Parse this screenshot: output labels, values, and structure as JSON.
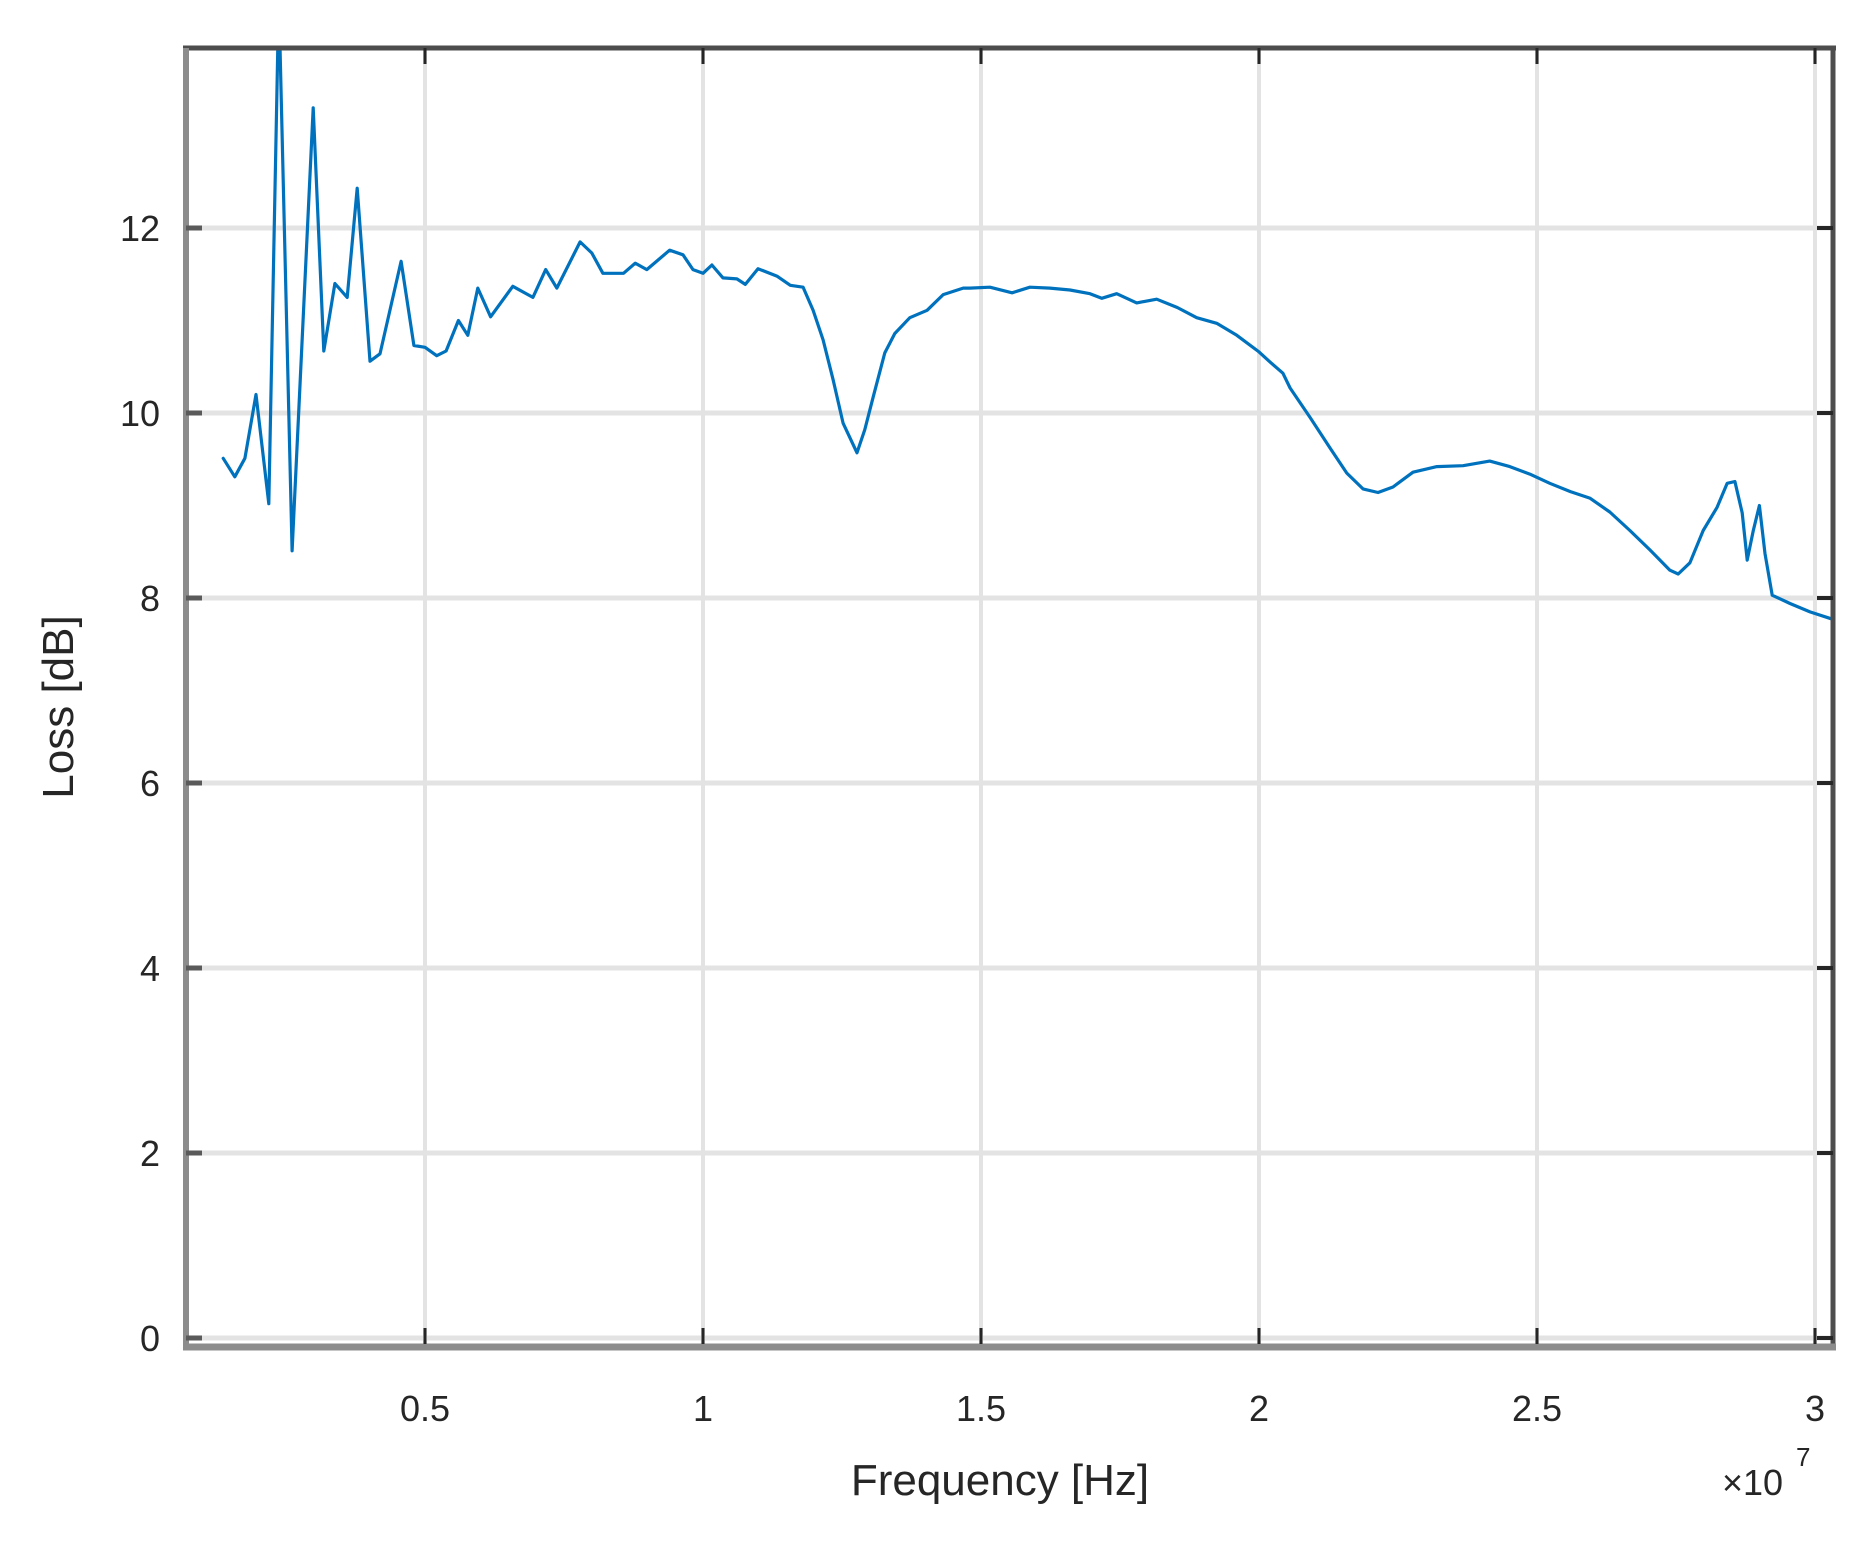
{
  "chart_data": {
    "type": "line",
    "title": "",
    "xlabel": "Frequency [Hz]",
    "ylabel": "Loss [dB]",
    "x_multiplier_label": "×10",
    "x_multiplier_exponent": "7",
    "xlim": [
      0.07,
      3.03
    ],
    "ylim": [
      0,
      14
    ],
    "x_ticks": [
      0.5,
      1,
      1.5,
      2,
      2.5,
      3
    ],
    "x_tick_labels": [
      "0.5",
      "1",
      "1.5",
      "2",
      "2.5",
      "3"
    ],
    "y_ticks": [
      0,
      2,
      4,
      6,
      8,
      10,
      12
    ],
    "y_tick_labels": [
      "0",
      "2",
      "4",
      "6",
      "8",
      "10",
      "12"
    ],
    "grid": true,
    "legend": null,
    "series": [
      {
        "name": "Loss",
        "color": "#0072BD",
        "x": [
          0.137,
          0.158,
          0.176,
          0.196,
          0.219,
          0.237,
          0.261,
          0.299,
          0.318,
          0.338,
          0.36,
          0.378,
          0.401,
          0.419,
          0.457,
          0.48,
          0.5,
          0.521,
          0.538,
          0.56,
          0.577,
          0.595,
          0.618,
          0.658,
          0.694,
          0.717,
          0.737,
          0.779,
          0.8,
          0.82,
          0.857,
          0.878,
          0.899,
          0.94,
          0.964,
          0.982,
          1.0,
          1.016,
          1.036,
          1.061,
          1.076,
          1.099,
          1.133,
          1.157,
          1.18,
          1.198,
          1.216,
          1.234,
          1.252,
          1.277,
          1.291,
          1.306,
          1.327,
          1.345,
          1.372,
          1.403,
          1.432,
          1.468,
          1.48,
          1.516,
          1.556,
          1.588,
          1.624,
          1.66,
          1.696,
          1.717,
          1.744,
          1.78,
          1.816,
          1.853,
          1.888,
          1.924,
          1.96,
          2.0,
          2.02,
          2.043,
          2.056,
          2.092,
          2.128,
          2.158,
          2.187,
          2.214,
          2.241,
          2.277,
          2.32,
          2.367,
          2.415,
          2.451,
          2.487,
          2.523,
          2.56,
          2.595,
          2.631,
          2.667,
          2.703,
          2.739,
          2.754,
          2.775,
          2.799,
          2.824,
          2.842,
          2.856,
          2.869,
          2.878,
          2.889,
          2.9,
          2.91,
          2.923,
          2.955,
          2.991,
          3.032
        ],
        "y": [
          9.51,
          9.31,
          9.51,
          10.2,
          9.02,
          14.5,
          8.51,
          13.3,
          10.67,
          11.4,
          11.25,
          12.43,
          10.56,
          10.64,
          11.64,
          10.73,
          10.71,
          10.62,
          10.67,
          11.0,
          10.84,
          11.35,
          11.04,
          11.37,
          11.25,
          11.55,
          11.35,
          11.85,
          11.73,
          11.51,
          11.51,
          11.62,
          11.55,
          11.76,
          11.71,
          11.55,
          11.51,
          11.6,
          11.46,
          11.45,
          11.39,
          11.56,
          11.48,
          11.38,
          11.36,
          11.11,
          10.79,
          10.36,
          9.89,
          9.57,
          9.82,
          10.17,
          10.65,
          10.86,
          11.03,
          11.11,
          11.28,
          11.35,
          11.35,
          11.36,
          11.3,
          11.36,
          11.35,
          11.33,
          11.29,
          11.24,
          11.29,
          11.19,
          11.23,
          11.14,
          11.03,
          10.97,
          10.84,
          10.66,
          10.55,
          10.43,
          10.27,
          9.95,
          9.62,
          9.35,
          9.18,
          9.14,
          9.2,
          9.36,
          9.42,
          9.43,
          9.48,
          9.42,
          9.34,
          9.24,
          9.15,
          9.08,
          8.93,
          8.73,
          8.52,
          8.3,
          8.26,
          8.38,
          8.73,
          8.98,
          9.24,
          9.26,
          8.92,
          8.41,
          8.73,
          9.0,
          8.48,
          8.03,
          7.94,
          7.85,
          7.77
        ]
      }
    ]
  },
  "style": {
    "grid_color": "#e3e3e3",
    "axis_color_primary": "#8c8c8c",
    "axis_color_box": "#4d4d4d",
    "text_color": "#262626"
  }
}
